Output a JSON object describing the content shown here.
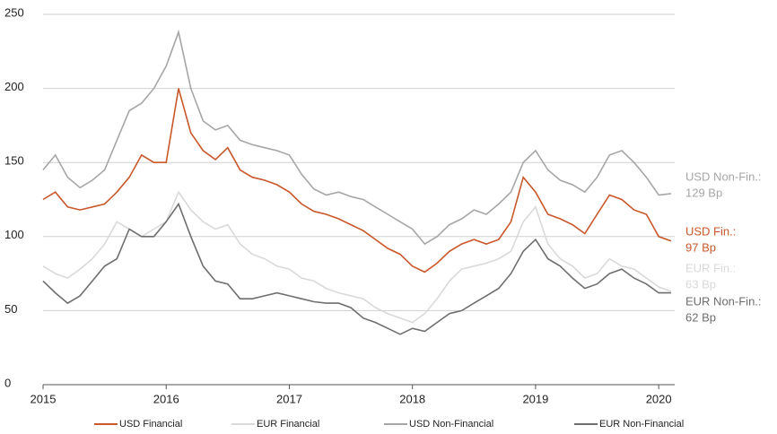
{
  "chart_data": {
    "type": "line",
    "x": [
      2015.0,
      2015.1,
      2015.2,
      2015.3,
      2015.4,
      2015.5,
      2015.6,
      2015.7,
      2015.8,
      2015.9,
      2016.0,
      2016.1,
      2016.2,
      2016.3,
      2016.4,
      2016.5,
      2016.6,
      2016.7,
      2016.8,
      2016.9,
      2017.0,
      2017.1,
      2017.2,
      2017.3,
      2017.4,
      2017.5,
      2017.6,
      2017.7,
      2017.8,
      2017.9,
      2018.0,
      2018.1,
      2018.2,
      2018.3,
      2018.4,
      2018.5,
      2018.6,
      2018.7,
      2018.8,
      2018.9,
      2019.0,
      2019.1,
      2019.2,
      2019.3,
      2019.4,
      2019.5,
      2019.6,
      2019.7,
      2019.8,
      2019.9,
      2020.0,
      2020.1
    ],
    "series": [
      {
        "name": "USD Financial",
        "color": "#c9572a",
        "end_label": [
          "USD Fin.:",
          "97 Bp"
        ],
        "values": [
          125,
          130,
          120,
          118,
          120,
          122,
          130,
          140,
          155,
          150,
          150,
          200,
          170,
          158,
          152,
          160,
          145,
          140,
          138,
          135,
          130,
          122,
          117,
          115,
          112,
          108,
          104,
          98,
          92,
          88,
          80,
          76,
          82,
          90,
          95,
          98,
          95,
          98,
          110,
          140,
          130,
          115,
          112,
          108,
          102,
          115,
          128,
          125,
          118,
          115,
          100,
          97
        ]
      },
      {
        "name": "EUR Financial",
        "color": "#d9d9d9",
        "end_label": [
          "EUR Fin.:",
          "63 Bp"
        ],
        "values": [
          80,
          75,
          72,
          78,
          85,
          95,
          110,
          105,
          100,
          105,
          110,
          130,
          118,
          110,
          105,
          108,
          95,
          88,
          85,
          80,
          78,
          72,
          70,
          65,
          62,
          60,
          58,
          52,
          48,
          45,
          42,
          48,
          58,
          70,
          78,
          80,
          82,
          85,
          90,
          110,
          120,
          95,
          85,
          80,
          72,
          75,
          85,
          80,
          78,
          72,
          66,
          63
        ]
      },
      {
        "name": "USD Non-Financial",
        "color": "#a6a6a6",
        "end_label": [
          "USD Non-Fin.:",
          "129 Bp"
        ],
        "values": [
          145,
          155,
          140,
          133,
          138,
          145,
          165,
          185,
          190,
          200,
          215,
          238,
          200,
          178,
          172,
          175,
          165,
          162,
          160,
          158,
          155,
          142,
          132,
          128,
          130,
          127,
          125,
          120,
          115,
          110,
          105,
          95,
          100,
          108,
          112,
          118,
          115,
          122,
          130,
          150,
          158,
          145,
          138,
          135,
          130,
          140,
          155,
          158,
          150,
          140,
          128,
          129
        ]
      },
      {
        "name": "EUR Non-Financial",
        "color": "#6e6e6e",
        "end_label": [
          "EUR Non-Fin.:",
          "62 Bp"
        ],
        "values": [
          70,
          62,
          55,
          60,
          70,
          80,
          85,
          105,
          100,
          100,
          110,
          122,
          100,
          80,
          70,
          68,
          58,
          58,
          60,
          62,
          60,
          58,
          56,
          55,
          55,
          52,
          45,
          42,
          38,
          34,
          38,
          36,
          42,
          48,
          50,
          55,
          60,
          65,
          75,
          90,
          98,
          85,
          80,
          72,
          65,
          68,
          75,
          78,
          72,
          68,
          62,
          62
        ]
      }
    ],
    "xlim": [
      2015,
      2020.13
    ],
    "xticks": [
      2015,
      2016,
      2017,
      2018,
      2019,
      2020
    ],
    "ylim": [
      0,
      250
    ],
    "yticks": [
      0,
      50,
      100,
      150,
      200,
      250
    ],
    "grid": true
  }
}
